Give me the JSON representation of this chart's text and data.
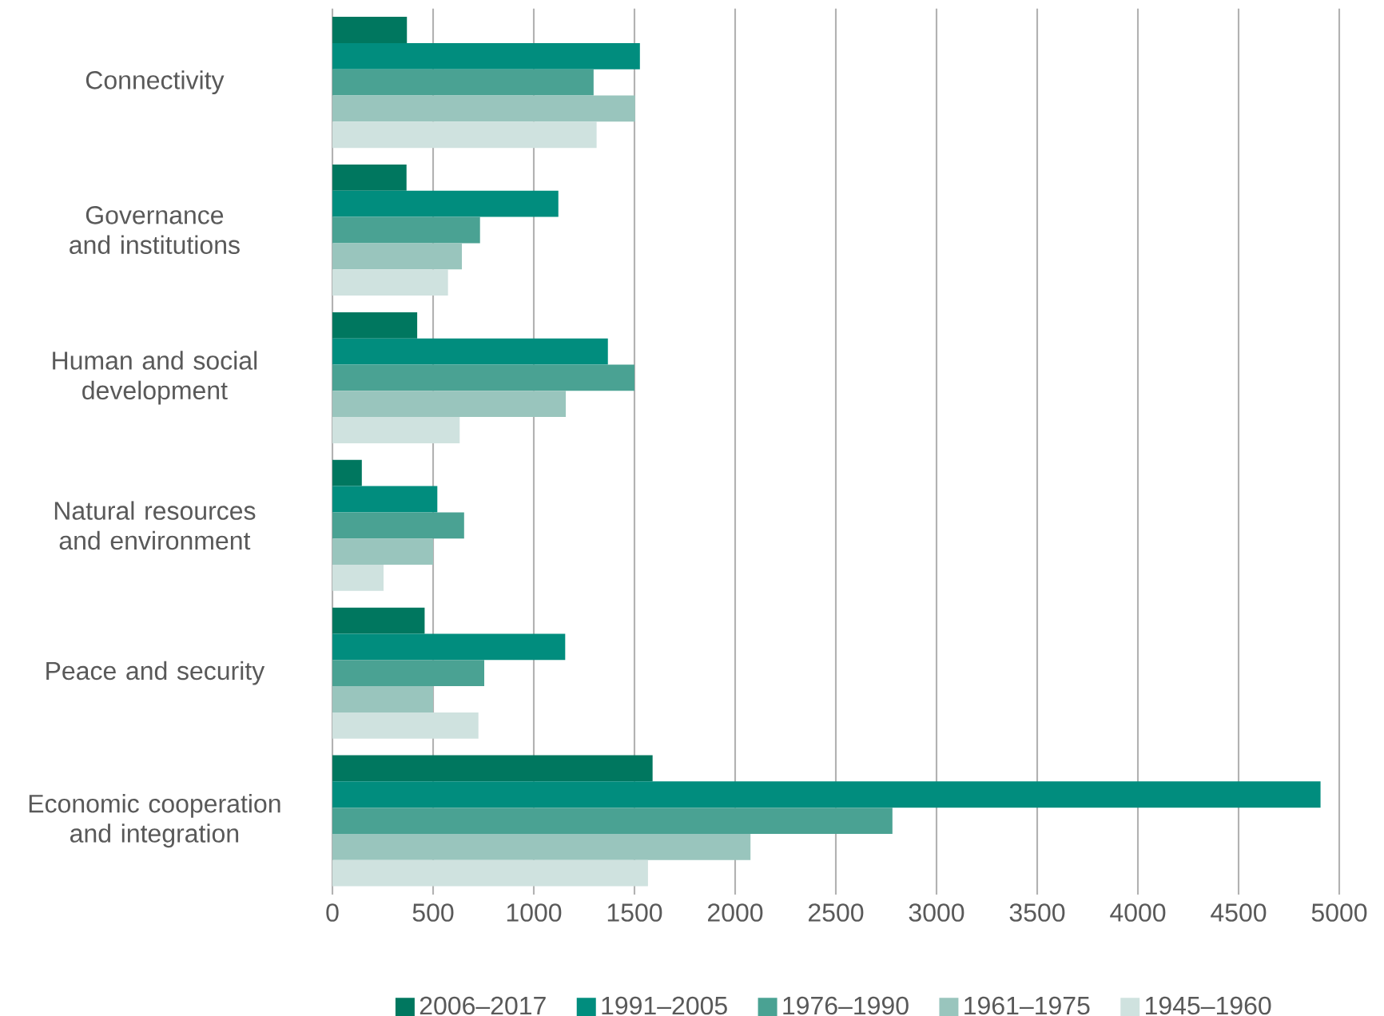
{
  "chart_data": {
    "type": "bar",
    "orientation": "horizontal",
    "categories": [
      "Connectivity",
      "Governance and institutions",
      "Human and social development",
      "Natural resources and environment",
      "Peace and security",
      "Economic cooperation and integration"
    ],
    "series": [
      {
        "name": "2006–2017",
        "color": "#00775f",
        "values": [
          370,
          368,
          421,
          146,
          458,
          1590
        ]
      },
      {
        "name": "1991–2005",
        "color": "#018d7e",
        "values": [
          1527,
          1122,
          1368,
          521,
          1156,
          4907
        ]
      },
      {
        "name": "1976–1990",
        "color": "#4aa293",
        "values": [
          1297,
          733,
          1500,
          654,
          754,
          2781
        ]
      },
      {
        "name": "1961–1975",
        "color": "#99c5bd",
        "values": [
          1503,
          643,
          1159,
          500,
          500,
          2077
        ]
      },
      {
        "name": "1945–1960",
        "color": "#cfe2df",
        "values": [
          1312,
          574,
          632,
          254,
          725,
          1567
        ]
      }
    ],
    "xlim": [
      0,
      5000
    ],
    "xticks": [
      0,
      500,
      1000,
      1500,
      2000,
      2500,
      3000,
      3500,
      4000,
      4500,
      5000
    ],
    "grid": "x",
    "legend": "bottom"
  }
}
